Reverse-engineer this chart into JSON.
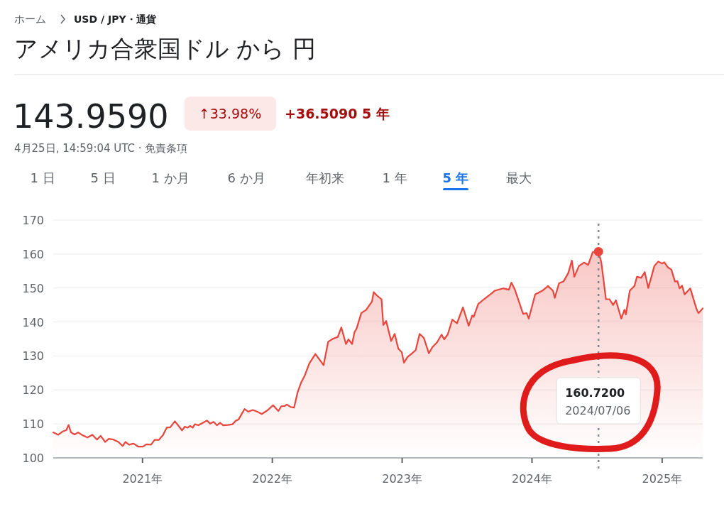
{
  "chart_data": {
    "type": "area",
    "title": "アメリカ合衆国ドル から 円",
    "annotations": [
      "ホーム",
      "USD / JPY・通貨",
      "143.9590",
      "↑33.98%",
      "+36.5090 5 年",
      "4月25日, 14:59:04 UTC · 免責条項",
      "1 日",
      "5 日",
      "1 か月",
      "6 か月",
      "年初来",
      "1 年",
      "5 年",
      "最大",
      "160.7200",
      "2024/07/06"
    ],
    "x": [
      "2020-04-25",
      "2020-05-09",
      "2020-05-22",
      "2020-06-01",
      "2020-06-07",
      "2020-06-14",
      "2020-06-24",
      "2020-07-04",
      "2020-07-14",
      "2020-07-30",
      "2020-08-13",
      "2020-08-26",
      "2020-09-05",
      "2020-09-18",
      "2020-09-28",
      "2020-10-11",
      "2020-10-25",
      "2020-11-06",
      "2020-11-14",
      "2020-11-24",
      "2020-12-07",
      "2020-12-20",
      "2021-01-02",
      "2021-01-12",
      "2021-01-25",
      "2021-02-04",
      "2021-02-16",
      "2021-02-28",
      "2021-03-10",
      "2021-03-20",
      "2021-04-02",
      "2021-04-14",
      "2021-04-22",
      "2021-04-30",
      "2021-05-08",
      "2021-05-15",
      "2021-05-22",
      "2021-05-28",
      "2021-06-07",
      "2021-06-21",
      "2021-07-01",
      "2021-07-10",
      "2021-07-20",
      "2021-07-29",
      "2021-08-07",
      "2021-08-16",
      "2021-08-29",
      "2021-09-11",
      "2021-09-21",
      "2021-09-28",
      "2021-10-15",
      "2021-10-25",
      "2021-11-07",
      "2021-11-20",
      "2021-12-02",
      "2021-12-17",
      "2022-01-03",
      "2022-01-18",
      "2022-01-26",
      "2022-02-05",
      "2022-02-11",
      "2022-02-21",
      "2022-03-03",
      "2022-03-13",
      "2022-03-23",
      "2022-04-02",
      "2022-04-15",
      "2022-05-02",
      "2022-05-25",
      "2022-06-07",
      "2022-06-21",
      "2022-07-04",
      "2022-07-14",
      "2022-07-27",
      "2022-08-03",
      "2022-08-13",
      "2022-08-20",
      "2022-08-26",
      "2022-09-08",
      "2022-09-22",
      "2022-10-02",
      "2022-10-08",
      "2022-10-13",
      "2022-10-22",
      "2022-11-04",
      "2022-11-09",
      "2022-11-17",
      "2022-12-01",
      "2022-12-11",
      "2022-12-21",
      "2022-12-31",
      "2023-01-06",
      "2023-01-16",
      "2023-01-29",
      "2023-02-08",
      "2023-02-19",
      "2023-03-03",
      "2023-03-17",
      "2023-03-27",
      "2023-04-09",
      "2023-04-22",
      "2023-04-29",
      "2023-05-09",
      "2023-05-22",
      "2023-06-04",
      "2023-06-21",
      "2023-07-07",
      "2023-07-17",
      "2023-07-21",
      "2023-08-03",
      "2023-08-19",
      "2023-09-02",
      "2023-09-18",
      "2023-10-12",
      "2023-10-28",
      "2023-11-04",
      "2023-11-14",
      "2023-12-07",
      "2023-12-17",
      "2023-12-23",
      "2024-01-10",
      "2024-01-30",
      "2024-02-15",
      "2024-02-29",
      "2024-03-05",
      "2024-03-17",
      "2024-03-30",
      "2024-04-12",
      "2024-04-22",
      "2024-04-29",
      "2024-05-12",
      "2024-05-26",
      "2024-06-07",
      "2024-06-20",
      "2024-07-06",
      "2024-07-14",
      "2024-07-27",
      "2024-08-06",
      "2024-08-16",
      "2024-08-24",
      "2024-09-08",
      "2024-09-17",
      "2024-09-21",
      "2024-10-02",
      "2024-10-15",
      "2024-10-22",
      "2024-11-03",
      "2024-11-13",
      "2024-11-23",
      "2024-12-10",
      "2024-12-21",
      "2025-01-01",
      "2025-01-07",
      "2025-01-17",
      "2025-01-27",
      "2025-02-06",
      "2025-02-13",
      "2025-02-19",
      "2025-02-26",
      "2025-03-05",
      "2025-03-21",
      "2025-04-07",
      "2025-04-13",
      "2025-04-25"
    ],
    "series": [
      {
        "color": "#e8453c",
        "values": [
          107.5,
          106.8,
          107.8,
          108.2,
          109.7,
          107.5,
          106.9,
          107.5,
          106.8,
          106.0,
          106.8,
          105.4,
          106.5,
          104.7,
          105.6,
          105.4,
          104.7,
          103.5,
          104.7,
          103.9,
          104.2,
          103.3,
          103.3,
          104.0,
          103.9,
          105.3,
          105.3,
          106.8,
          108.9,
          109.0,
          110.8,
          109.2,
          108.1,
          109.2,
          108.9,
          109.4,
          108.9,
          109.9,
          109.6,
          110.4,
          111.0,
          110.1,
          110.6,
          109.6,
          110.3,
          109.6,
          109.7,
          109.9,
          111.0,
          111.3,
          114.4,
          113.6,
          114.1,
          113.6,
          112.9,
          113.9,
          115.5,
          113.8,
          115.2,
          115.3,
          115.7,
          115.0,
          114.8,
          119.3,
          122.2,
          124.2,
          127.8,
          130.6,
          127.3,
          134.2,
          135.1,
          135.6,
          138.4,
          133.5,
          134.9,
          133.5,
          137.0,
          138.1,
          142.6,
          143.6,
          145.1,
          146.0,
          148.8,
          147.8,
          146.7,
          139.1,
          140.3,
          134.4,
          136.5,
          132.2,
          131.1,
          128.0,
          129.7,
          130.8,
          131.7,
          136.5,
          135.3,
          130.8,
          132.6,
          134.0,
          136.3,
          134.9,
          136.3,
          140.7,
          139.6,
          144.3,
          138.9,
          141.9,
          141.5,
          145.3,
          146.7,
          147.8,
          149.2,
          149.9,
          149.5,
          151.6,
          149.5,
          142.4,
          142.6,
          141.0,
          148.1,
          149.2,
          150.6,
          149.2,
          147.1,
          151.4,
          152.0,
          154.4,
          158.1,
          153.3,
          156.5,
          157.5,
          156.8,
          160.6,
          160.72,
          157.5,
          146.7,
          146.7,
          145.0,
          146.4,
          141.0,
          143.6,
          142.2,
          149.2,
          150.6,
          153.3,
          153.0,
          154.7,
          150.0,
          156.5,
          157.8,
          157.2,
          157.6,
          156.1,
          155.4,
          151.9,
          152.0,
          149.9,
          150.7,
          148.1,
          149.9,
          144.0,
          142.6,
          144.0
        ]
      }
    ],
    "xlim": [
      "2020-04-25",
      "2025-04-25"
    ],
    "xticks": [
      {
        "value": "2021",
        "label": "2021年"
      },
      {
        "value": "2022",
        "label": "2022年"
      },
      {
        "value": "2023",
        "label": "2023年"
      },
      {
        "value": "2024",
        "label": "2024年"
      },
      {
        "value": "2025",
        "label": "2025年"
      }
    ],
    "ylim": [
      100,
      170
    ],
    "yticks": [
      100,
      110,
      120,
      130,
      140,
      150,
      160,
      170
    ],
    "grid": "y",
    "ref_lines": [
      {
        "axis": "x",
        "value": "2024-07-06",
        "color": "#80868b",
        "line_style": "dotted"
      }
    ]
  }
}
